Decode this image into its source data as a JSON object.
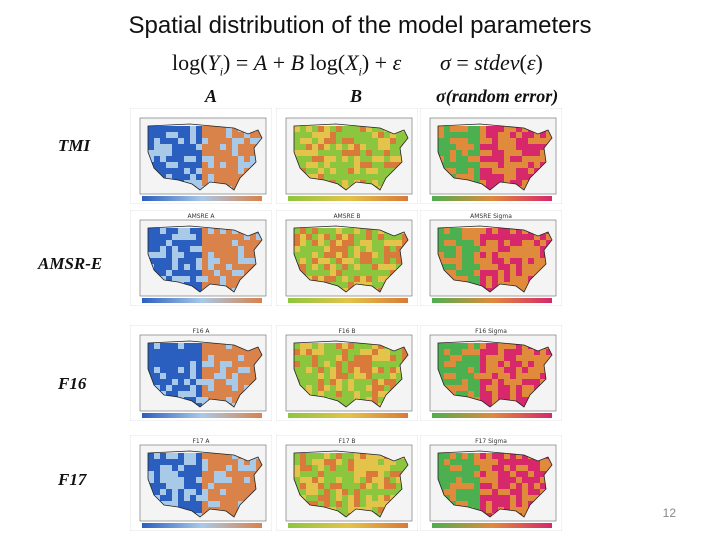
{
  "title": "Spatial distribution of the model parameters",
  "equations": {
    "model": "log(Y_i) = A + B log(X_i) + ε",
    "sigma": "σ = stdev(ε)"
  },
  "columns": [
    "A",
    "B",
    "σ(random error)"
  ],
  "rows": [
    {
      "label": "TMI",
      "panel_titles": [
        "",
        "",
        ""
      ]
    },
    {
      "label": "AMSR-E",
      "panel_titles": [
        "AMSRE A",
        "AMSRE B",
        "AMSRE Sigma"
      ]
    },
    {
      "label": "F16",
      "panel_titles": [
        "F16 A",
        "F16 B",
        "F16 Sigma"
      ]
    },
    {
      "label": "F17",
      "panel_titles": [
        "F17 A",
        "F17 B",
        "F17 Sigma"
      ]
    }
  ],
  "page_number": "12",
  "colors": {
    "A_low": "#2b5fbf",
    "A_mid": "#a9c9e8",
    "A_high": "#d9824a",
    "B_low": "#8cc63f",
    "B_mid": "#e3c34a",
    "B_high": "#d97a3a",
    "S_low": "#4caf50",
    "S_mid": "#e08a3c",
    "S_high": "#d6286a"
  }
}
